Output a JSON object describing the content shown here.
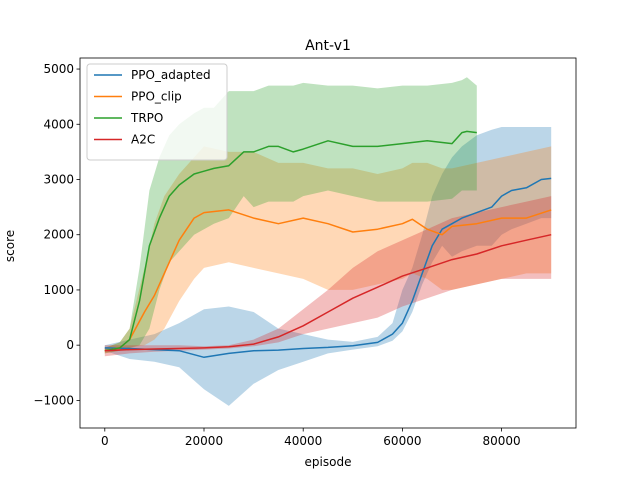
{
  "chart_data": {
    "type": "line",
    "title": "Ant-v1",
    "xlabel": "episode",
    "ylabel": "score",
    "xlim": [
      -5000,
      95000
    ],
    "ylim": [
      -1500,
      5200
    ],
    "xticks": [
      0,
      20000,
      40000,
      60000,
      80000
    ],
    "xtick_labels": [
      "0",
      "20000",
      "40000",
      "60000",
      "80000"
    ],
    "yticks": [
      -1000,
      0,
      1000,
      2000,
      3000,
      4000,
      5000
    ],
    "ytick_labels": [
      "−1000",
      "0",
      "1000",
      "2000",
      "3000",
      "4000",
      "5000"
    ],
    "grid": false,
    "legend_position": "top-left",
    "series": [
      {
        "name": "PPO_adapted",
        "color": "#1f77b4",
        "x": [
          0,
          5000,
          10000,
          15000,
          20000,
          25000,
          30000,
          35000,
          40000,
          45000,
          50000,
          55000,
          58000,
          60000,
          62000,
          64000,
          66000,
          68000,
          70000,
          72000,
          75000,
          78000,
          80000,
          82000,
          85000,
          88000,
          90000
        ],
        "y": [
          -50,
          -60,
          -80,
          -100,
          -220,
          -150,
          -100,
          -90,
          -60,
          -40,
          -10,
          50,
          200,
          400,
          800,
          1300,
          1800,
          2100,
          2200,
          2300,
          2400,
          2500,
          2700,
          2800,
          2850,
          3000,
          3020
        ],
        "lower": [
          -100,
          -250,
          -300,
          -400,
          -800,
          -1100,
          -700,
          -450,
          -300,
          -150,
          -80,
          -20,
          80,
          250,
          600,
          1100,
          1500,
          1800,
          1600,
          1700,
          1800,
          1800,
          2000,
          2100,
          2200,
          2300,
          2300
        ],
        "upper": [
          0,
          100,
          200,
          400,
          650,
          700,
          600,
          300,
          200,
          100,
          60,
          150,
          400,
          1000,
          1400,
          2000,
          2700,
          3100,
          3400,
          3600,
          3800,
          3900,
          3950,
          3950,
          3950,
          3950,
          3950
        ]
      },
      {
        "name": "PPO_clip",
        "color": "#ff7f0e",
        "x": [
          0,
          3000,
          5000,
          8000,
          10000,
          12000,
          15000,
          18000,
          20000,
          25000,
          30000,
          35000,
          40000,
          45000,
          50000,
          55000,
          60000,
          62000,
          65000,
          68000,
          70000,
          75000,
          80000,
          85000,
          90000
        ],
        "y": [
          -100,
          -50,
          100,
          600,
          900,
          1300,
          1900,
          2300,
          2400,
          2450,
          2300,
          2200,
          2300,
          2200,
          2050,
          2100,
          2200,
          2280,
          2100,
          2000,
          2150,
          2200,
          2300,
          2300,
          2450
        ],
        "lower": [
          -150,
          -100,
          -50,
          0,
          100,
          300,
          800,
          1200,
          1400,
          1500,
          1400,
          1300,
          1200,
          1000,
          1000,
          1100,
          1200,
          1300,
          1200,
          1000,
          1000,
          1100,
          1200,
          1300,
          1300
        ],
        "upper": [
          -50,
          50,
          300,
          1400,
          2200,
          2700,
          3100,
          3400,
          3600,
          3500,
          3500,
          3300,
          3300,
          3200,
          3200,
          3100,
          3200,
          3300,
          3300,
          3200,
          3200,
          3300,
          3400,
          3500,
          3600
        ]
      },
      {
        "name": "TRPO",
        "color": "#2ca02c",
        "x": [
          0,
          3000,
          5000,
          7000,
          9000,
          11000,
          13000,
          15000,
          18000,
          20000,
          22000,
          25000,
          28000,
          30000,
          33000,
          35000,
          38000,
          40000,
          45000,
          50000,
          55000,
          60000,
          65000,
          70000,
          72000,
          73000,
          75000
        ],
        "y": [
          -100,
          -50,
          100,
          800,
          1800,
          2300,
          2700,
          2900,
          3100,
          3150,
          3200,
          3250,
          3500,
          3500,
          3600,
          3600,
          3500,
          3550,
          3700,
          3600,
          3600,
          3650,
          3700,
          3650,
          3850,
          3870,
          3850
        ],
        "lower": [
          -150,
          -100,
          -50,
          0,
          300,
          1000,
          1500,
          1700,
          2000,
          2100,
          2200,
          2300,
          2700,
          2500,
          2600,
          2600,
          2600,
          2700,
          2800,
          2700,
          2600,
          2600,
          2600,
          2650,
          2800,
          2800,
          2800
        ],
        "upper": [
          -50,
          50,
          300,
          1400,
          2800,
          3400,
          3800,
          4000,
          4200,
          4300,
          4300,
          4600,
          4600,
          4600,
          4700,
          4700,
          4700,
          4750,
          4700,
          4700,
          4650,
          4700,
          4700,
          4750,
          4800,
          4850,
          4700
        ]
      },
      {
        "name": "A2C",
        "color": "#d62728",
        "x": [
          0,
          5000,
          10000,
          15000,
          20000,
          25000,
          30000,
          35000,
          40000,
          45000,
          50000,
          55000,
          60000,
          65000,
          70000,
          75000,
          80000,
          85000,
          90000
        ],
        "y": [
          -100,
          -80,
          -70,
          -60,
          -50,
          -30,
          20,
          150,
          350,
          600,
          850,
          1050,
          1250,
          1400,
          1550,
          1650,
          1800,
          1900,
          2000
        ],
        "lower": [
          -200,
          -150,
          -120,
          -100,
          -80,
          -60,
          -20,
          50,
          200,
          300,
          400,
          500,
          700,
          850,
          1000,
          1100,
          1200,
          1200,
          1200
        ],
        "upper": [
          0,
          0,
          0,
          0,
          -20,
          0,
          100,
          300,
          650,
          1000,
          1400,
          1700,
          1900,
          2100,
          2300,
          2400,
          2500,
          2600,
          2700
        ]
      }
    ]
  }
}
